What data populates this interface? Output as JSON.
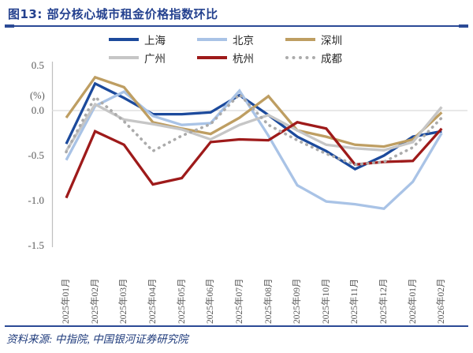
{
  "title": "图13: 部分核心城市租金价格指数环比",
  "footer": "资料来源: 中指院, 中国银河证券研究院",
  "axis": {
    "unit_label": "(%)",
    "ytick_labels": [
      "0.5",
      "0.0",
      "-0.5",
      "-1.0",
      "-1.5"
    ]
  },
  "colors": {
    "title_navy": "#24418F",
    "rule_navy": "#2B4A96",
    "axis_text_gray": "#595959",
    "zero_gridline": "#D9D9D9",
    "y_axis_line": "#BFBFBF"
  },
  "chart_data": {
    "type": "line",
    "title": "图13: 部分核心城市租金价格指数环比",
    "ylabel": "(%)",
    "ylim": [
      -1.5,
      0.5
    ],
    "yticks": [
      0.5,
      0.0,
      -0.5,
      -1.0,
      -1.5
    ],
    "grid": "zero-line-only",
    "legend_position": "top",
    "categories": [
      "2025年01月",
      "2025年02月",
      "2025年03月",
      "2025年04月",
      "2025年05月",
      "2025年06月",
      "2025年07月",
      "2025年08月",
      "2025年09月",
      "2025年10月",
      "2025年11月",
      "2025年12月",
      "2026年01月",
      "2026年02月"
    ],
    "series": [
      {
        "name": "上海",
        "color": "#1C4A9C",
        "style": "solid",
        "values": [
          -0.37,
          0.3,
          0.14,
          -0.04,
          -0.04,
          -0.02,
          0.17,
          -0.05,
          -0.29,
          -0.45,
          -0.65,
          -0.5,
          -0.29,
          -0.23
        ]
      },
      {
        "name": "北京",
        "color": "#A9C3E6",
        "style": "solid",
        "values": [
          -0.55,
          0.05,
          0.21,
          -0.06,
          -0.16,
          -0.14,
          0.22,
          -0.28,
          -0.83,
          -1.01,
          -1.04,
          -1.09,
          -0.79,
          -0.25
        ]
      },
      {
        "name": "深圳",
        "color": "#BE9E62",
        "style": "solid",
        "values": [
          -0.08,
          0.37,
          0.26,
          -0.13,
          -0.2,
          -0.26,
          -0.08,
          0.16,
          -0.22,
          -0.29,
          -0.38,
          -0.4,
          -0.32,
          -0.02
        ]
      },
      {
        "name": "广州",
        "color": "#C6C6C6",
        "style": "solid",
        "values": [
          -0.45,
          0.07,
          -0.1,
          -0.15,
          -0.21,
          -0.32,
          -0.16,
          -0.05,
          -0.22,
          -0.38,
          -0.42,
          -0.44,
          -0.35,
          0.04
        ]
      },
      {
        "name": "杭州",
        "color": "#9E1A1A",
        "style": "solid",
        "values": [
          -0.97,
          -0.23,
          -0.38,
          -0.82,
          -0.75,
          -0.35,
          -0.32,
          -0.33,
          -0.13,
          -0.2,
          -0.6,
          -0.57,
          -0.56,
          -0.2
        ]
      },
      {
        "name": "成都",
        "color": "#ABABAB",
        "style": "dotted",
        "values": [
          -0.46,
          0.15,
          -0.12,
          -0.45,
          -0.28,
          -0.15,
          0.18,
          -0.16,
          -0.33,
          -0.48,
          -0.6,
          -0.57,
          -0.41,
          -0.08
        ]
      }
    ]
  }
}
